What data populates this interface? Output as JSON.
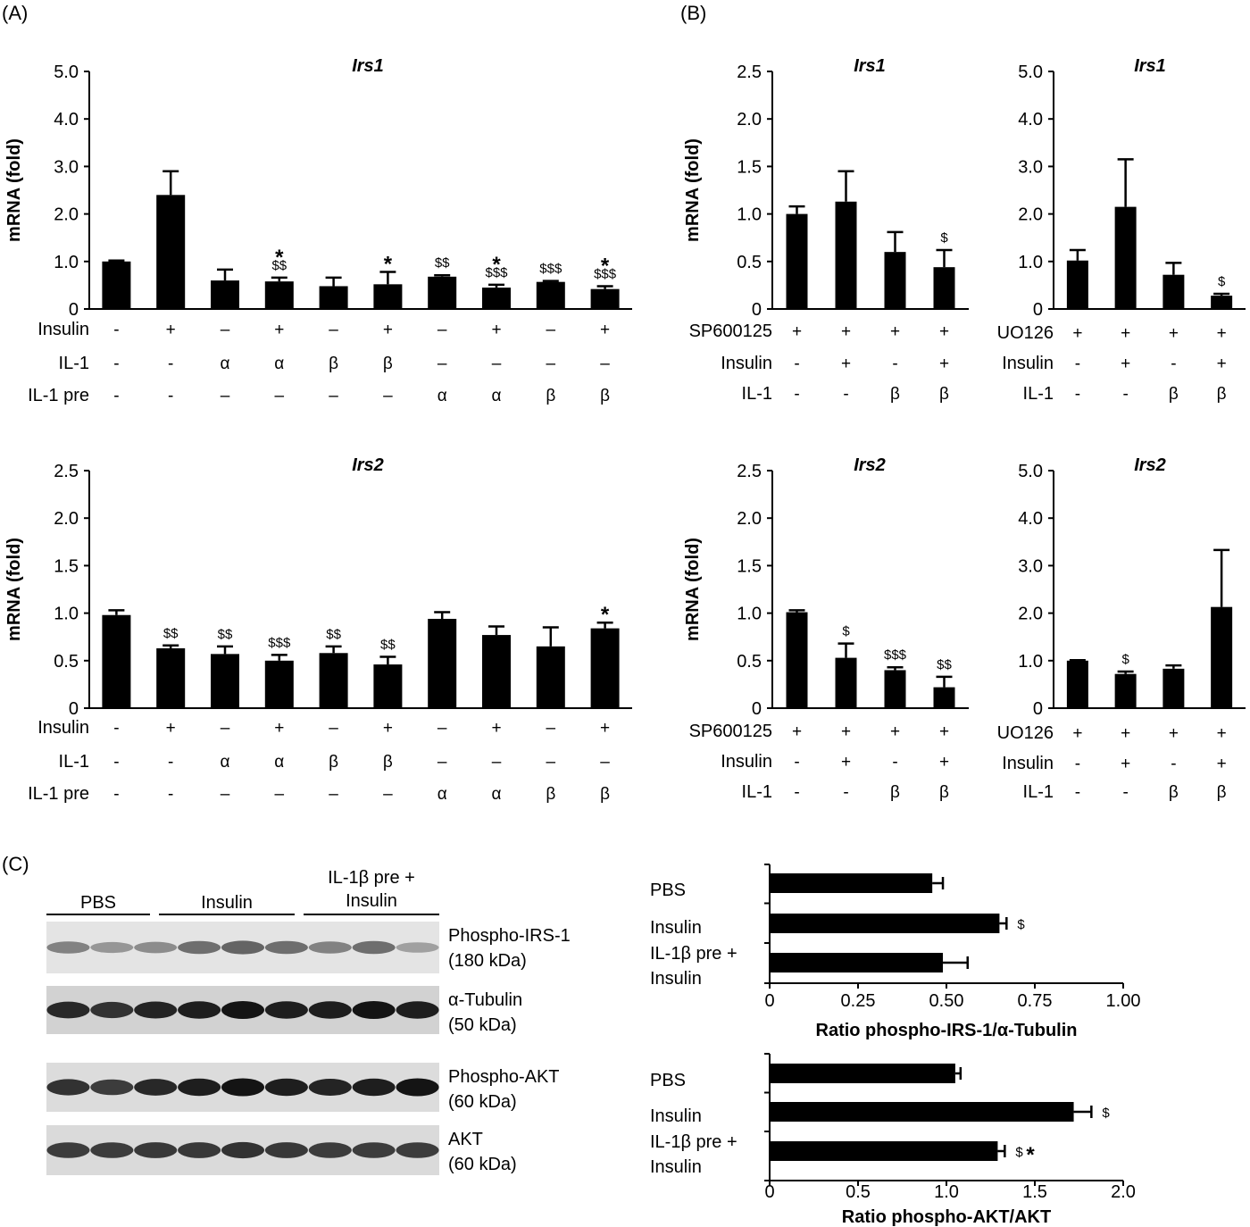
{
  "panel_labels": [
    "(A)",
    "(B)",
    "(C)"
  ],
  "chart_data": [
    {
      "id": "A-irs1",
      "type": "bar",
      "title": "Irs1",
      "ylabel": "mRNA (fold)",
      "ylim": [
        0,
        5.0
      ],
      "yticks": [
        "0",
        "1.0",
        "2.0",
        "3.0",
        "4.0",
        "5.0"
      ],
      "values": [
        1.0,
        2.4,
        0.6,
        0.58,
        0.48,
        0.52,
        0.68,
        0.45,
        0.57,
        0.42
      ],
      "errors": [
        0.02,
        0.5,
        0.23,
        0.08,
        0.18,
        0.26,
        0.03,
        0.06,
        0.02,
        0.06
      ],
      "annotations": [
        {
          "i": 3,
          "dollar": "$$",
          "star": "*"
        },
        {
          "i": 5,
          "dollar": "",
          "star": "*"
        },
        {
          "i": 6,
          "dollar": "$$",
          "star": ""
        },
        {
          "i": 7,
          "dollar": "$$$",
          "star": "*"
        },
        {
          "i": 8,
          "dollar": "$$$",
          "star": ""
        },
        {
          "i": 9,
          "dollar": "$$$",
          "star": "*"
        }
      ],
      "rows": [
        {
          "label": "Insulin",
          "cells": [
            "-",
            "+",
            "–",
            "+",
            "–",
            "+",
            "–",
            "+",
            "–",
            "+"
          ]
        },
        {
          "label": "IL-1",
          "cells": [
            "-",
            "-",
            "α",
            "α",
            "β",
            "β",
            "–",
            "–",
            "–",
            "–"
          ]
        },
        {
          "label": "IL-1 pre",
          "cells": [
            "-",
            "-",
            "–",
            "–",
            "–",
            "–",
            "α",
            "α",
            "β",
            "β"
          ]
        }
      ]
    },
    {
      "id": "A-irs2",
      "type": "bar",
      "title": "Irs2",
      "ylabel": "mRNA (fold)",
      "ylim": [
        0,
        2.5
      ],
      "yticks": [
        "0",
        "0.5",
        "1.0",
        "1.5",
        "2.0",
        "2.5"
      ],
      "values": [
        0.98,
        0.63,
        0.57,
        0.5,
        0.58,
        0.46,
        0.94,
        0.77,
        0.65,
        0.84
      ],
      "errors": [
        0.05,
        0.03,
        0.08,
        0.06,
        0.07,
        0.08,
        0.07,
        0.09,
        0.2,
        0.06
      ],
      "annotations": [
        {
          "i": 1,
          "dollar": "$$",
          "star": ""
        },
        {
          "i": 2,
          "dollar": "$$",
          "star": ""
        },
        {
          "i": 3,
          "dollar": "$$$",
          "star": ""
        },
        {
          "i": 4,
          "dollar": "$$",
          "star": ""
        },
        {
          "i": 5,
          "dollar": "$$",
          "star": ""
        },
        {
          "i": 9,
          "dollar": "",
          "star": "*"
        }
      ],
      "rows": [
        {
          "label": "Insulin",
          "cells": [
            "-",
            "+",
            "–",
            "+",
            "–",
            "+",
            "–",
            "+",
            "–",
            "+"
          ]
        },
        {
          "label": "IL-1",
          "cells": [
            "-",
            "-",
            "α",
            "α",
            "β",
            "β",
            "–",
            "–",
            "–",
            "–"
          ]
        },
        {
          "label": "IL-1 pre",
          "cells": [
            "-",
            "-",
            "–",
            "–",
            "–",
            "–",
            "α",
            "α",
            "β",
            "β"
          ]
        }
      ]
    },
    {
      "id": "B-sp-irs1",
      "type": "bar",
      "title": "Irs1",
      "ylabel": "mRNA (fold)",
      "ylim": [
        0,
        2.5
      ],
      "yticks": [
        "0",
        "0.5",
        "1.0",
        "1.5",
        "2.0",
        "2.5"
      ],
      "values": [
        1.0,
        1.13,
        0.6,
        0.44
      ],
      "errors": [
        0.08,
        0.32,
        0.21,
        0.18
      ],
      "annotations": [
        {
          "i": 3,
          "dollar": "$",
          "star": ""
        }
      ],
      "rows": [
        {
          "label": "SP600125",
          "cells": [
            "+",
            "+",
            "+",
            "+"
          ]
        },
        {
          "label": "Insulin",
          "cells": [
            "-",
            "+",
            "-",
            "+"
          ]
        },
        {
          "label": "IL-1",
          "cells": [
            "-",
            "-",
            "β",
            "β"
          ]
        }
      ]
    },
    {
      "id": "B-uo-irs1",
      "type": "bar",
      "title": "Irs1",
      "ylabel": "",
      "ylim": [
        0,
        5.0
      ],
      "yticks": [
        "0",
        "1.0",
        "2.0",
        "3.0",
        "4.0",
        "5.0"
      ],
      "values": [
        1.02,
        2.15,
        0.72,
        0.28
      ],
      "errors": [
        0.22,
        1.0,
        0.25,
        0.04
      ],
      "annotations": [
        {
          "i": 3,
          "dollar": "$",
          "star": ""
        }
      ],
      "rows": [
        {
          "label": "UO126",
          "cells": [
            "+",
            "+",
            "+",
            "+"
          ]
        },
        {
          "label": "Insulin",
          "cells": [
            "-",
            "+",
            "-",
            "+"
          ]
        },
        {
          "label": "IL-1",
          "cells": [
            "-",
            "-",
            "β",
            "β"
          ]
        }
      ]
    },
    {
      "id": "B-sp-irs2",
      "type": "bar",
      "title": "Irs2",
      "ylabel": "mRNA (fold)",
      "ylim": [
        0,
        2.5
      ],
      "yticks": [
        "0",
        "0.5",
        "1.0",
        "1.5",
        "2.0",
        "2.5"
      ],
      "values": [
        1.01,
        0.53,
        0.4,
        0.22
      ],
      "errors": [
        0.02,
        0.15,
        0.03,
        0.11
      ],
      "annotations": [
        {
          "i": 1,
          "dollar": "$",
          "star": ""
        },
        {
          "i": 2,
          "dollar": "$$$",
          "star": ""
        },
        {
          "i": 3,
          "dollar": "$$",
          "star": ""
        }
      ],
      "rows": [
        {
          "label": "SP600125",
          "cells": [
            "+",
            "+",
            "+",
            "+"
          ]
        },
        {
          "label": "Insulin",
          "cells": [
            "-",
            "+",
            "-",
            "+"
          ]
        },
        {
          "label": "IL-1",
          "cells": [
            "-",
            "-",
            "β",
            "β"
          ]
        }
      ]
    },
    {
      "id": "B-uo-irs2",
      "type": "bar",
      "title": "Irs2",
      "ylabel": "",
      "ylim": [
        0,
        5.0
      ],
      "yticks": [
        "0",
        "1.0",
        "2.0",
        "3.0",
        "4.0",
        "5.0"
      ],
      "values": [
        1.0,
        0.72,
        0.83,
        2.13
      ],
      "errors": [
        0.01,
        0.05,
        0.07,
        1.2
      ],
      "annotations": [
        {
          "i": 1,
          "dollar": "$",
          "star": ""
        }
      ],
      "rows": [
        {
          "label": "UO126",
          "cells": [
            "+",
            "+",
            "+",
            "+"
          ]
        },
        {
          "label": "Insulin",
          "cells": [
            "-",
            "+",
            "-",
            "+"
          ]
        },
        {
          "label": "IL-1",
          "cells": [
            "-",
            "-",
            "β",
            "β"
          ]
        }
      ]
    },
    {
      "id": "C-irs1",
      "type": "bar",
      "orientation": "horizontal",
      "xlabel": "Ratio phospho-IRS-1/α-Tubulin",
      "xlim": [
        0,
        1.0
      ],
      "xticks": [
        "0",
        "0.25",
        "0.50",
        "0.75",
        "1.00"
      ],
      "categories": [
        [
          "PBS"
        ],
        [
          "Insulin"
        ],
        [
          "IL-1β pre +",
          "Insulin"
        ]
      ],
      "values": [
        0.46,
        0.65,
        0.49
      ],
      "errors": [
        0.03,
        0.02,
        0.07
      ],
      "annotations": [
        {
          "i": 1,
          "dollar": "$",
          "star": ""
        }
      ]
    },
    {
      "id": "C-akt",
      "type": "bar",
      "orientation": "horizontal",
      "xlabel": "Ratio phospho-AKT/AKT",
      "xlim": [
        0,
        2.0
      ],
      "xticks": [
        "0",
        "0.5",
        "1.0",
        "1.5",
        "2.0"
      ],
      "categories": [
        [
          "PBS"
        ],
        [
          "Insulin"
        ],
        [
          "IL-1β pre +",
          "Insulin"
        ]
      ],
      "values": [
        1.05,
        1.72,
        1.29
      ],
      "errors": [
        0.03,
        0.1,
        0.04
      ],
      "annotations": [
        {
          "i": 1,
          "dollar": "$",
          "star": ""
        },
        {
          "i": 2,
          "dollar": "$",
          "star": "*"
        }
      ]
    }
  ],
  "blot": {
    "groups": [
      {
        "lines": [
          "PBS"
        ]
      },
      {
        "lines": [
          "Insulin"
        ]
      },
      {
        "lines": [
          "IL-1β pre +",
          "Insulin"
        ]
      }
    ],
    "lanes_per_group": 3,
    "bands": [
      {
        "name": "Phospho-IRS-1",
        "size": "(180 kDa)",
        "intensity": [
          0.45,
          0.35,
          0.4,
          0.55,
          0.6,
          0.55,
          0.45,
          0.55,
          0.3
        ],
        "bg": "#e4e4e4"
      },
      {
        "name": "α-Tubulin",
        "size": "(50 kDa)",
        "intensity": [
          0.9,
          0.85,
          0.92,
          0.95,
          1.0,
          0.95,
          0.95,
          1.0,
          0.95
        ],
        "bg": "#d2d2d2"
      },
      {
        "name": "Phospho-AKT",
        "size": "(60 kDa)",
        "intensity": [
          0.85,
          0.8,
          0.9,
          0.95,
          1.0,
          0.95,
          0.92,
          0.95,
          1.0
        ],
        "bg": "#dcdcdc"
      },
      {
        "name": "AKT",
        "size": "(60 kDa)",
        "intensity": [
          0.8,
          0.8,
          0.82,
          0.82,
          0.85,
          0.82,
          0.8,
          0.8,
          0.8
        ],
        "bg": "#dadada"
      }
    ]
  },
  "colors": {
    "bar": "#000000",
    "text": "#000000",
    "background": "#ffffff"
  }
}
